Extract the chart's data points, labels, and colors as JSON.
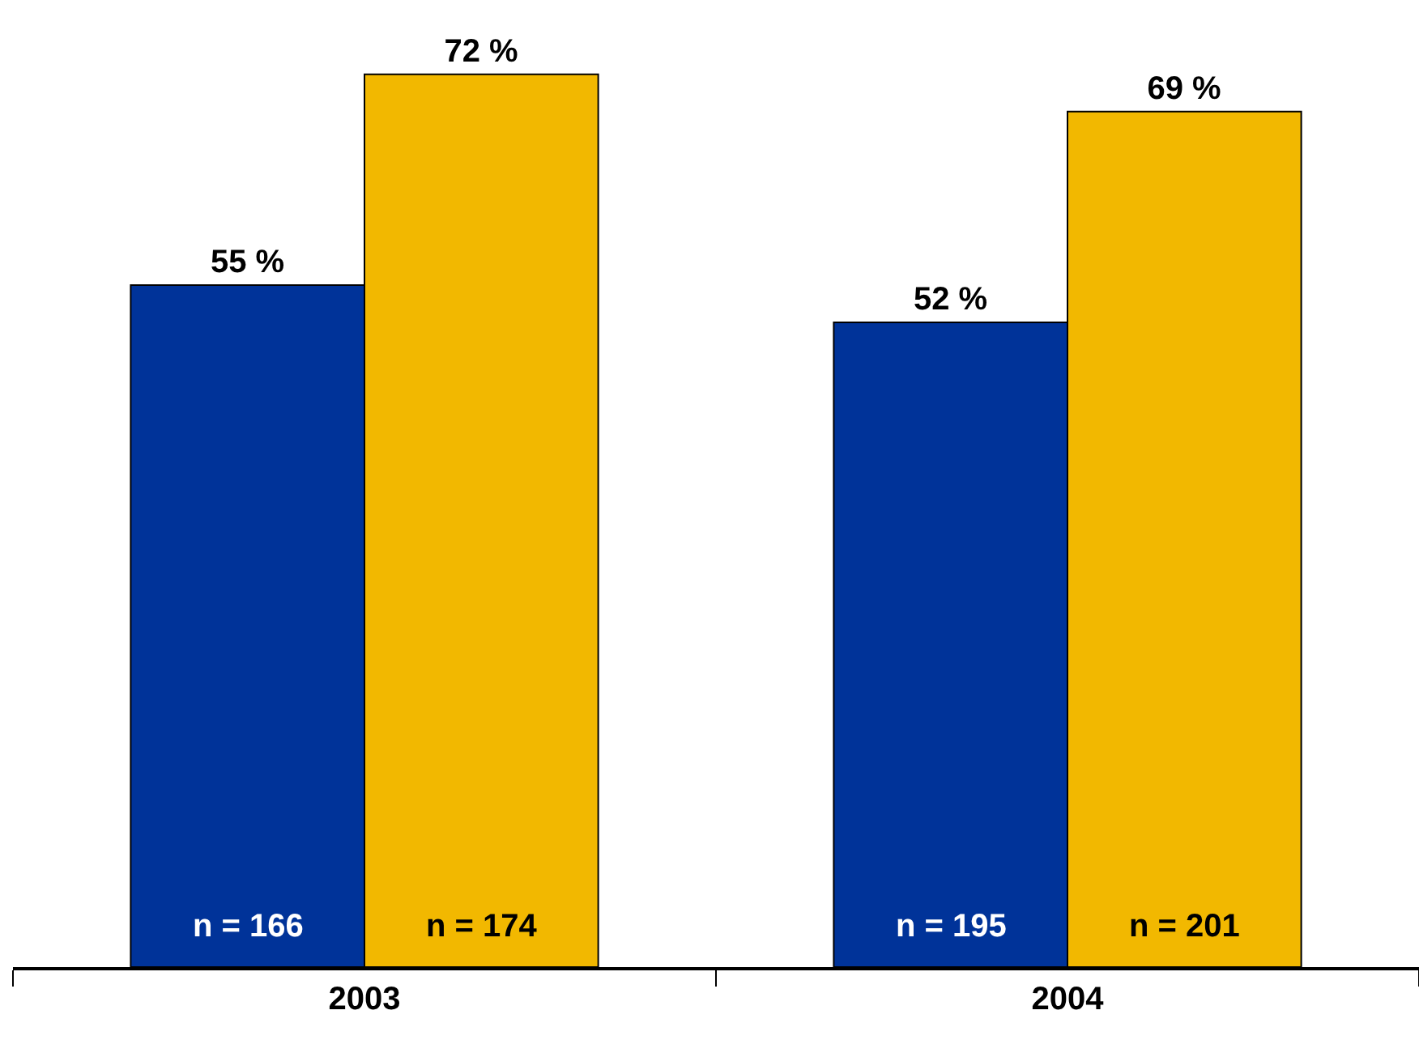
{
  "chart_data": {
    "type": "bar",
    "categories": [
      "2003",
      "2004"
    ],
    "series": [
      {
        "color": "#003399",
        "values": [
          55,
          52
        ],
        "value_labels": [
          "55 %",
          "52 %"
        ]
      },
      {
        "color": "#f2b800",
        "values": [
          72,
          69
        ],
        "value_labels": [
          "72 %",
          "69 %"
        ]
      }
    ],
    "ylim": [
      0,
      78
    ],
    "tick_labels": "x",
    "legend": false,
    "annotations": [
      {
        "text": "n = 166",
        "x": "2003",
        "y": 0
      },
      {
        "text": "n = 174",
        "x": "2003",
        "y": 0
      },
      {
        "text": "n = 195",
        "x": "2004",
        "y": 0
      },
      {
        "text": "n = 201",
        "x": "2004",
        "y": 0
      }
    ]
  }
}
